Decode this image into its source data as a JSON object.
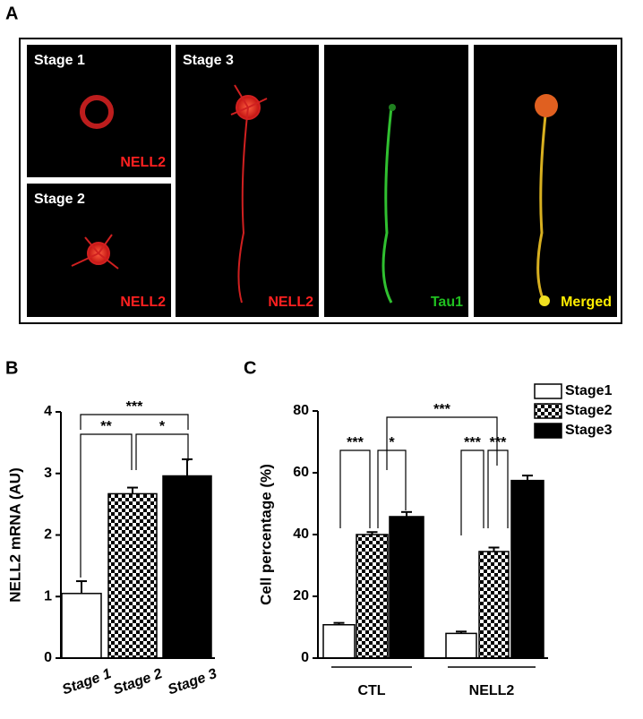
{
  "panel_labels": [
    "A",
    "B",
    "C"
  ],
  "panel_a": {
    "images": [
      {
        "stage": "Stage 1",
        "marker": "NELL2"
      },
      {
        "stage": "Stage 2",
        "marker": "NELL2"
      },
      {
        "stage": "Stage 3",
        "marker": "NELL2"
      },
      {
        "marker": "Tau1"
      },
      {
        "marker": "Merged"
      }
    ]
  },
  "chart_data": [
    {
      "type": "bar",
      "y_label": "NELL2 mRNA (AU)",
      "categories": [
        "Stage 1",
        "Stage 2",
        "Stage 3"
      ],
      "values": [
        1.05,
        2.67,
        2.96
      ],
      "errors": [
        0.2,
        0.1,
        0.27
      ],
      "fills": [
        "white",
        "checker",
        "black"
      ],
      "ylim": [
        0,
        4
      ],
      "yticks": [
        0,
        1,
        2,
        3,
        4
      ],
      "annotations": [
        "**",
        "*",
        "***"
      ]
    },
    {
      "type": "grouped_bar",
      "y_label": "Cell percentage (%)",
      "categories": [
        "CTL",
        "NELL2"
      ],
      "series": [
        {
          "name": "Stage1",
          "fill": "white",
          "values": [
            10.8,
            8.0
          ],
          "errors": [
            0.6,
            0.6
          ]
        },
        {
          "name": "Stage2",
          "fill": "checker",
          "values": [
            40.0,
            34.5
          ],
          "errors": [
            0.8,
            1.3
          ]
        },
        {
          "name": "Stage3",
          "fill": "black",
          "values": [
            45.8,
            57.5
          ],
          "errors": [
            1.5,
            1.6
          ]
        }
      ],
      "ylim": [
        0,
        80
      ],
      "yticks": [
        0,
        20,
        40,
        60,
        80
      ],
      "annotations": [
        "***",
        "*",
        "***",
        "***",
        "***"
      ]
    }
  ]
}
